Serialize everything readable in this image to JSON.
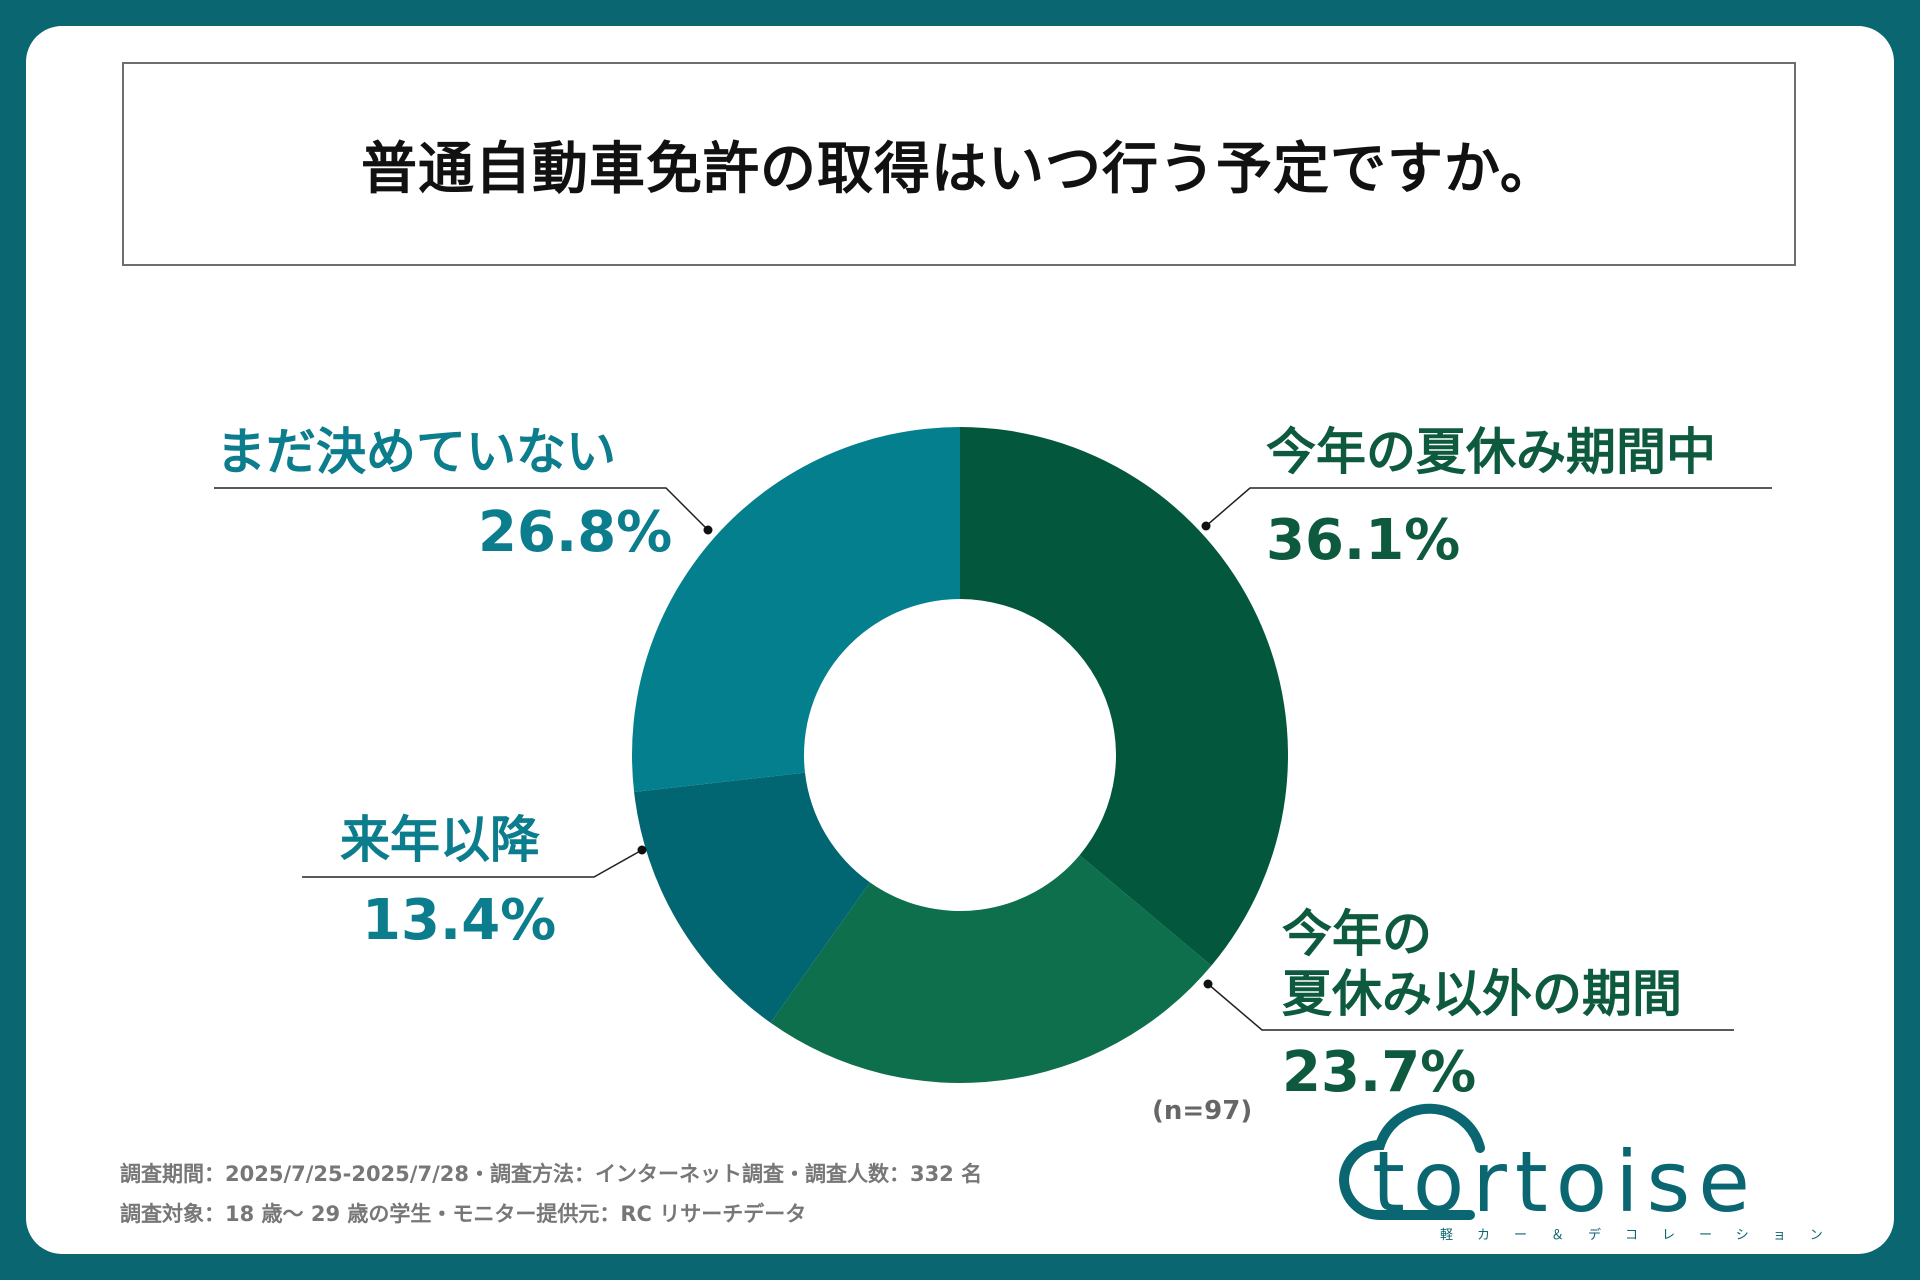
{
  "title": "普通自動車免許の取得はいつ行う予定ですか。",
  "chart_data": {
    "type": "pie",
    "categories": [
      "今年の夏休み期間中",
      "今年の夏休み以外の期間",
      "来年以降",
      "まだ決めていない"
    ],
    "values": [
      36.1,
      23.7,
      13.4,
      26.8
    ],
    "value_labels": [
      "36.1%",
      "23.7%",
      "13.4%",
      "26.8%"
    ],
    "colors": [
      "#02573d",
      "#0d6f4c",
      "#016672",
      "#047f8d"
    ],
    "n_label": "(n=97)"
  },
  "labels": {
    "summer": {
      "name": "今年の夏休み期間中",
      "pct": "36.1%"
    },
    "other_line1": "今年の",
    "other_line2": "夏休み以外の期間",
    "other_pct": "23.7%",
    "next_year": {
      "name": "来年以降",
      "pct": "13.4%"
    },
    "undecided": {
      "name": "まだ決めていない",
      "pct": "26.8%"
    }
  },
  "footnote": {
    "line1": "調査期間：2025/7/25-2025/7/28・調査方法：インターネット調査・調査人数：332 名",
    "line2": "調査対象：18 歳〜 29 歳の学生・モニター提供元：RC リサーチデータ"
  },
  "logo": {
    "word": "tortoise",
    "tagline": "軽カー＆デコレーション"
  }
}
